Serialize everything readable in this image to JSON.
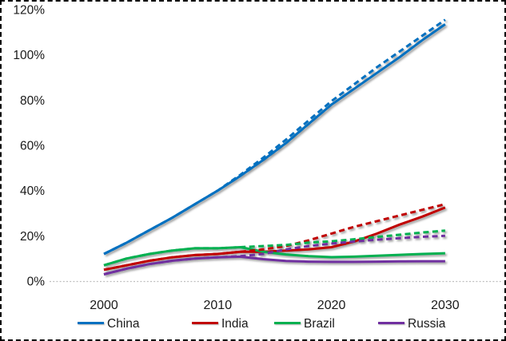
{
  "chart_data": {
    "type": "line",
    "title": "",
    "xlabel": "",
    "ylabel": "",
    "x_ticks": [
      "2000",
      "2010",
      "2020",
      "2030"
    ],
    "y_ticks": [
      "0%",
      "20%",
      "40%",
      "60%",
      "80%",
      "100%",
      "120%"
    ],
    "y_tick_values": [
      0,
      20,
      40,
      60,
      80,
      100,
      120
    ],
    "x_tick_values": [
      2000,
      2010,
      2020,
      2030
    ],
    "xlim": [
      2000,
      2030
    ],
    "ylim": [
      0,
      120
    ],
    "grid": "dotted baseline at 0% only",
    "legend_position": "bottom",
    "years": [
      2000,
      2002,
      2004,
      2006,
      2008,
      2010,
      2012,
      2014,
      2016,
      2018,
      2020,
      2022,
      2024,
      2026,
      2028,
      2030
    ],
    "series": [
      {
        "name": "China (solid)",
        "country": "China",
        "color": "#0070C0",
        "dash": false,
        "values": [
          12,
          17,
          22.5,
          28,
          34,
          40,
          46.5,
          53.5,
          61,
          69.5,
          78,
          85,
          92,
          99,
          106.5,
          113.5
        ]
      },
      {
        "name": "India (solid)",
        "country": "India",
        "color": "#C00000",
        "dash": false,
        "values": [
          5,
          7,
          9,
          10.5,
          11.5,
          12,
          13,
          13,
          13.5,
          14,
          15,
          17.5,
          21,
          25,
          28.5,
          32.5
        ]
      },
      {
        "name": "Brazil (solid)",
        "country": "Brazil",
        "color": "#00B050",
        "dash": false,
        "values": [
          7,
          10,
          12,
          13.5,
          14.5,
          14.5,
          15,
          13,
          11.8,
          11,
          10.6,
          10.8,
          11.2,
          11.6,
          12,
          12.3
        ]
      },
      {
        "name": "Russia (solid)",
        "country": "Russia",
        "color": "#7030A0",
        "dash": false,
        "values": [
          3,
          5.5,
          7.5,
          9,
          10,
          10.5,
          10.8,
          9.7,
          8.9,
          8.6,
          8.5,
          8.5,
          8.6,
          8.7,
          8.8,
          8.8
        ]
      },
      {
        "name": "China (dashed projection)",
        "country": "China",
        "color": "#0070C0",
        "dash": true,
        "values": [
          12,
          17,
          22.5,
          28,
          34,
          40,
          47,
          54.5,
          62.5,
          71,
          79.5,
          87,
          94.5,
          101.5,
          108.5,
          115.5
        ]
      },
      {
        "name": "India (dashed projection)",
        "country": "India",
        "color": "#C00000",
        "dash": true,
        "values": [
          5,
          7,
          9,
          10.5,
          11.5,
          12,
          13,
          14,
          15.5,
          18,
          21,
          24,
          26.5,
          29,
          31.5,
          34
        ]
      },
      {
        "name": "Brazil (dashed projection)",
        "country": "Brazil",
        "color": "#00B050",
        "dash": true,
        "values": [
          7,
          10,
          12,
          13.5,
          14.5,
          14.5,
          15,
          15.5,
          16,
          17,
          17.6,
          18.5,
          19.5,
          20.5,
          21.5,
          22.3
        ]
      },
      {
        "name": "Russia (dashed projection)",
        "country": "Russia",
        "color": "#7030A0",
        "dash": true,
        "values": [
          3,
          5.5,
          7.5,
          9,
          10,
          10.5,
          11,
          12,
          14,
          15.5,
          16.6,
          17.5,
          18.3,
          19,
          19.6,
          20
        ]
      }
    ],
    "legend": {
      "items": [
        {
          "label": "China",
          "color": "#0070C0"
        },
        {
          "label": "India",
          "color": "#C00000"
        },
        {
          "label": "Brazil",
          "color": "#00B050"
        },
        {
          "label": "Russia",
          "color": "#7030A0"
        }
      ]
    },
    "colors": {
      "baseline_gridline": "#BFBFBF",
      "text": "#1a1a1a",
      "frame_border": "#000000",
      "background": "#FFFFFF"
    }
  }
}
